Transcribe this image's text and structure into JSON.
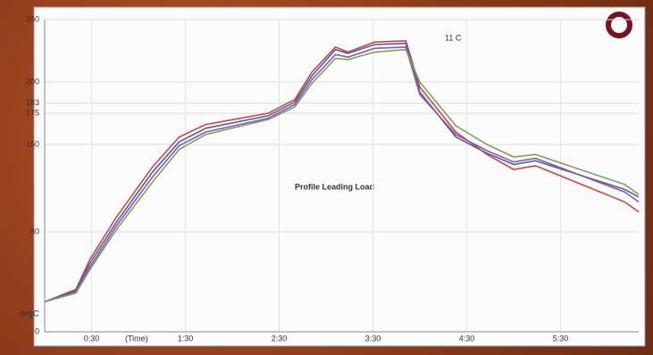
{
  "chart_data": {
    "type": "line",
    "y_label": "degC",
    "x_label": "(Time)",
    "annotations": [
      "11 C",
      "Profile Leading Load"
    ],
    "x": [
      0,
      20,
      29,
      46,
      69,
      86,
      103,
      143,
      160,
      171,
      186,
      194,
      211,
      231,
      240,
      263,
      283,
      300,
      314,
      371,
      380
    ],
    "series": [
      {
        "color": "#d0463c",
        "values": [
          24,
          34,
          58,
          92,
          132,
          156,
          166,
          175,
          186,
          208,
          228,
          224,
          232,
          233,
          196,
          160,
          142,
          130,
          133,
          104,
          96
        ]
      },
      {
        "color": "#4a5fae",
        "values": [
          24,
          33,
          55,
          88,
          128,
          152,
          163,
          173,
          184,
          205,
          226,
          223,
          230,
          231,
          192,
          156,
          143,
          134,
          137,
          114,
          108
        ]
      },
      {
        "color": "#8c5a9e",
        "values": [
          24,
          32,
          52,
          85,
          124,
          149,
          160,
          171,
          182,
          202,
          222,
          220,
          227,
          228,
          190,
          158,
          145,
          136,
          139,
          112,
          104
        ]
      },
      {
        "color": "#7aa35a",
        "values": [
          24,
          31,
          50,
          82,
          120,
          146,
          158,
          170,
          180,
          199,
          219,
          218,
          224,
          226,
          200,
          165,
          150,
          140,
          142,
          118,
          110
        ]
      }
    ],
    "xlim": [
      0,
      380
    ],
    "xticks": [
      {
        "value": 30,
        "label": "0:30"
      },
      {
        "value": 90,
        "label": "1:30"
      },
      {
        "value": 150,
        "label": "2:30"
      },
      {
        "value": 210,
        "label": "3:30"
      },
      {
        "value": 270,
        "label": "4:30"
      },
      {
        "value": 330,
        "label": "5:30"
      }
    ],
    "ylim": [
      0,
      250
    ],
    "yticks": [
      0,
      80,
      150,
      175,
      183,
      200,
      250
    ],
    "grid": true
  }
}
